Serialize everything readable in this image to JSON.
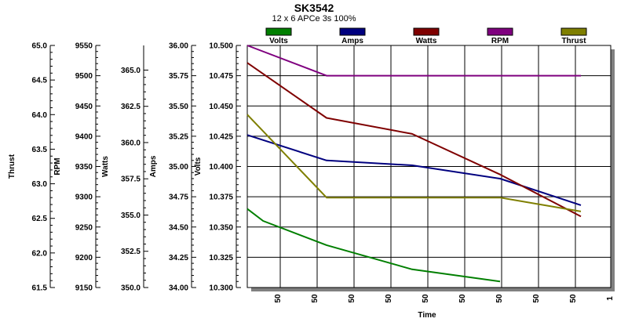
{
  "chart_data": {
    "type": "line",
    "title": "SK3542",
    "subtitle": "12 x 6 APCe 3s 100%",
    "xlabel": "Time",
    "x": [
      0,
      1,
      2,
      3,
      4,
      5
    ],
    "x_tick_labels": [
      "50",
      "50",
      "50",
      "50",
      "50",
      "50",
      "50",
      "50",
      "50",
      "1"
    ],
    "grid": true,
    "legend_position": "top",
    "axes": [
      {
        "name": "Thrust",
        "label": "Thrust",
        "ylim": [
          61.5,
          65.0
        ],
        "ticks": [
          "61.5",
          "62.0",
          "62.5",
          "63.0",
          "63.5",
          "64.0",
          "64.5",
          "65.0"
        ]
      },
      {
        "name": "RPM",
        "label": "RPM",
        "ylim": [
          9150,
          9550
        ],
        "ticks": [
          "9150",
          "9200",
          "9250",
          "9300",
          "9350",
          "9400",
          "9450",
          "9500",
          "9550"
        ]
      },
      {
        "name": "Watts",
        "label": "Watts",
        "ylim": [
          350.0,
          366.7
        ],
        "ticks": [
          "350.0",
          "352.5",
          "355.0",
          "357.5",
          "360.0",
          "362.5",
          "365.0"
        ]
      },
      {
        "name": "Amps",
        "label": "Amps",
        "ylim": [
          34.0,
          36.0
        ],
        "ticks": [
          "34.00",
          "34.25",
          "34.50",
          "34.75",
          "35.00",
          "35.25",
          "35.50",
          "35.75",
          "36.00"
        ]
      },
      {
        "name": "Volts",
        "label": "Volts",
        "ylim": [
          10.3,
          10.5
        ],
        "ticks": [
          "10.300",
          "10.325",
          "10.350",
          "10.375",
          "10.400",
          "10.425",
          "10.450",
          "10.475",
          "10.500"
        ]
      }
    ],
    "series": [
      {
        "name": "Volts",
        "axis": "Volts",
        "color": "#007f00",
        "values": [
          10.365,
          10.355,
          10.335,
          10.315,
          10.305,
          10.305
        ]
      },
      {
        "name": "Amps",
        "axis": "Amps",
        "color": "#00007f",
        "values": [
          35.26,
          35.05,
          35.01,
          34.9,
          34.68,
          34.68
        ]
      },
      {
        "name": "Watts",
        "axis": "Watts",
        "color": "#7f0000",
        "values": [
          365.5,
          361.7,
          360.6,
          357.8,
          354.9,
          354.9
        ]
      },
      {
        "name": "RPM",
        "axis": "RPM",
        "color": "#7f007f",
        "values": [
          9550,
          9500,
          9500,
          9500,
          9500,
          9500
        ]
      },
      {
        "name": "Thrust",
        "axis": "Thrust",
        "color": "#7f7f00",
        "values": [
          64.0,
          62.8,
          62.8,
          62.8,
          62.6,
          62.6
        ]
      }
    ],
    "series_x": [
      [
        0,
        0.2,
        1.0,
        2.0,
        3.0,
        3.0
      ],
      [
        0,
        1,
        2,
        3,
        4,
        4
      ],
      [
        0,
        1,
        2,
        3,
        4,
        4
      ],
      [
        0,
        1,
        1,
        2,
        3,
        4
      ],
      [
        0,
        1,
        2,
        3,
        4,
        4
      ]
    ]
  }
}
